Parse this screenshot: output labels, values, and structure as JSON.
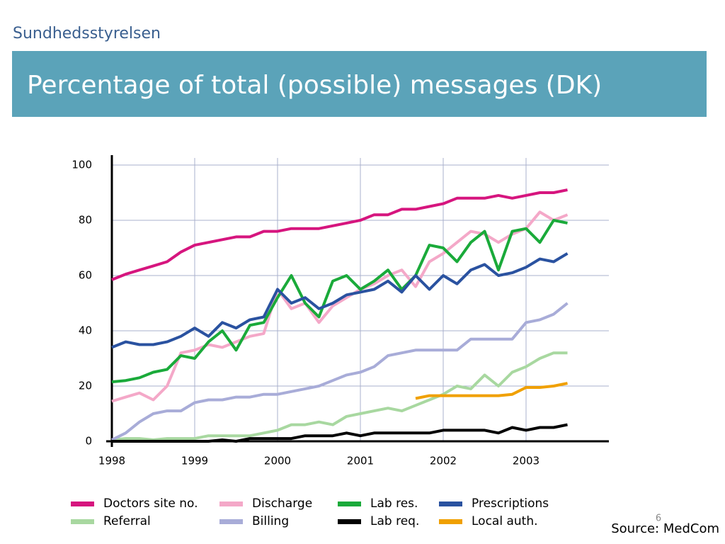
{
  "slide": {
    "logo": "Sundhedsstyrelsen",
    "title": "Percentage of total (possible) messages (DK)",
    "page_number": "6",
    "source": "Source: MedCom"
  },
  "chart_data": {
    "type": "line",
    "x": [
      1998,
      1998.167,
      1998.333,
      1998.5,
      1998.667,
      1998.833,
      1999,
      1999.167,
      1999.333,
      1999.5,
      1999.667,
      1999.833,
      2000,
      2000.167,
      2000.333,
      2000.5,
      2000.667,
      2000.833,
      2001,
      2001.167,
      2001.333,
      2001.5,
      2001.667,
      2001.833,
      2002,
      2002.167,
      2002.333,
      2002.5,
      2002.667,
      2002.833,
      2003,
      2003.167,
      2003.333,
      2003.5
    ],
    "xlim": [
      1998,
      2004
    ],
    "xticks": [
      1998,
      1999,
      2000,
      2001,
      2002,
      2003
    ],
    "ylim": [
      0,
      100
    ],
    "yticks": [
      0,
      20,
      40,
      60,
      80,
      100
    ],
    "grid": true,
    "series": [
      {
        "name": "Doctors site no.",
        "color": "#d6157e",
        "values": [
          58.5,
          60.5,
          62,
          63.5,
          65,
          68.5,
          71,
          72,
          73,
          74,
          74,
          76,
          76,
          77,
          77,
          77,
          78,
          79,
          80,
          82,
          82,
          84,
          84,
          85,
          86,
          88,
          88,
          88,
          89,
          88,
          89,
          90,
          90,
          91
        ]
      },
      {
        "name": "Discharge",
        "color": "#f4a8c8",
        "values": [
          14.5,
          16,
          17.5,
          15,
          20,
          32,
          33,
          35,
          34,
          36,
          38,
          39,
          55,
          48,
          50,
          43,
          49,
          52,
          55,
          57,
          60,
          62,
          56,
          65,
          68,
          72,
          76,
          75,
          72,
          75,
          77,
          83,
          80,
          82
        ]
      },
      {
        "name": "Lab res.",
        "color": "#1aaa3a",
        "values": [
          21.5,
          22,
          23,
          25,
          26,
          31,
          30,
          36,
          40,
          33,
          42,
          43,
          52,
          60,
          50,
          45,
          58,
          60,
          55,
          58,
          62,
          55,
          60,
          71,
          70,
          65,
          72,
          76,
          62,
          76,
          77,
          72,
          80,
          79
        ]
      },
      {
        "name": "Prescriptions",
        "color": "#2a52a0",
        "values": [
          34,
          36,
          35,
          35,
          36,
          38,
          41,
          38,
          43,
          41,
          44,
          45,
          55,
          50,
          52,
          48,
          50,
          53,
          54,
          55,
          58,
          54,
          60,
          55,
          60,
          57,
          62,
          64,
          60,
          61,
          63,
          66,
          65,
          68
        ]
      },
      {
        "name": "Referral",
        "color": "#a8d8a0",
        "values": [
          0.5,
          1,
          1,
          0.5,
          1,
          1,
          1,
          2,
          2,
          2,
          2,
          3,
          4,
          6,
          6,
          7,
          6,
          9,
          10,
          11,
          12,
          11,
          13,
          15,
          17,
          20,
          19,
          24,
          20,
          25,
          27,
          30,
          32,
          32
        ]
      },
      {
        "name": "Billing",
        "color": "#a8acd8",
        "values": [
          0.5,
          3,
          7,
          10,
          11,
          11,
          14,
          15,
          15,
          16,
          16,
          17,
          17,
          18,
          19,
          20,
          22,
          24,
          25,
          27,
          31,
          32,
          33,
          33,
          33,
          33,
          37,
          37,
          37,
          37,
          43,
          44,
          46,
          50
        ]
      },
      {
        "name": "Lab req.",
        "color": "#000000",
        "values": [
          0,
          0,
          0,
          0,
          0,
          0,
          0,
          0,
          0.5,
          0,
          1,
          1,
          1,
          1,
          2,
          2,
          2,
          3,
          2,
          3,
          3,
          3,
          3,
          3,
          4,
          4,
          4,
          4,
          3,
          5,
          4,
          5,
          5,
          6
        ]
      },
      {
        "name": "Local auth.",
        "color": "#f0a000",
        "values": [
          null,
          null,
          null,
          null,
          null,
          null,
          null,
          null,
          null,
          null,
          null,
          null,
          null,
          null,
          null,
          null,
          null,
          null,
          null,
          null,
          null,
          null,
          15.5,
          16.5,
          16.5,
          16.5,
          16.5,
          16.5,
          16.5,
          17,
          19.5,
          19.5,
          20,
          21
        ]
      }
    ]
  }
}
